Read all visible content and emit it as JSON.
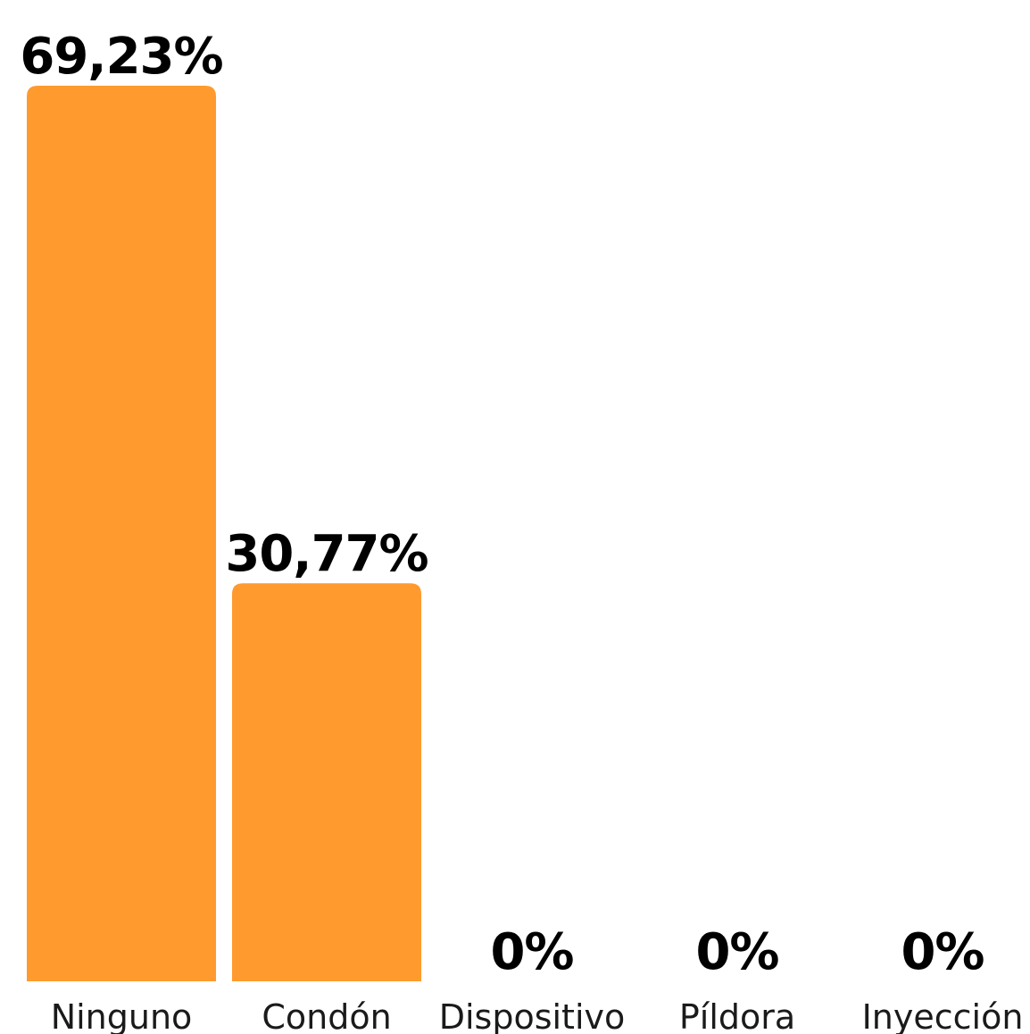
{
  "chart_data": {
    "type": "bar",
    "categories": [
      "Ninguno",
      "Condón",
      "Dispositivo",
      "Píldora",
      "Inyección"
    ],
    "values": [
      69.23,
      30.77,
      0,
      0,
      0
    ],
    "value_labels": [
      "69,23%",
      "30,77%",
      "0%",
      "0%",
      "0%"
    ],
    "title": "",
    "xlabel": "",
    "ylabel": "",
    "ylim": [
      0,
      69.23
    ],
    "grid": false,
    "bar_color": "#FF9B2E"
  }
}
